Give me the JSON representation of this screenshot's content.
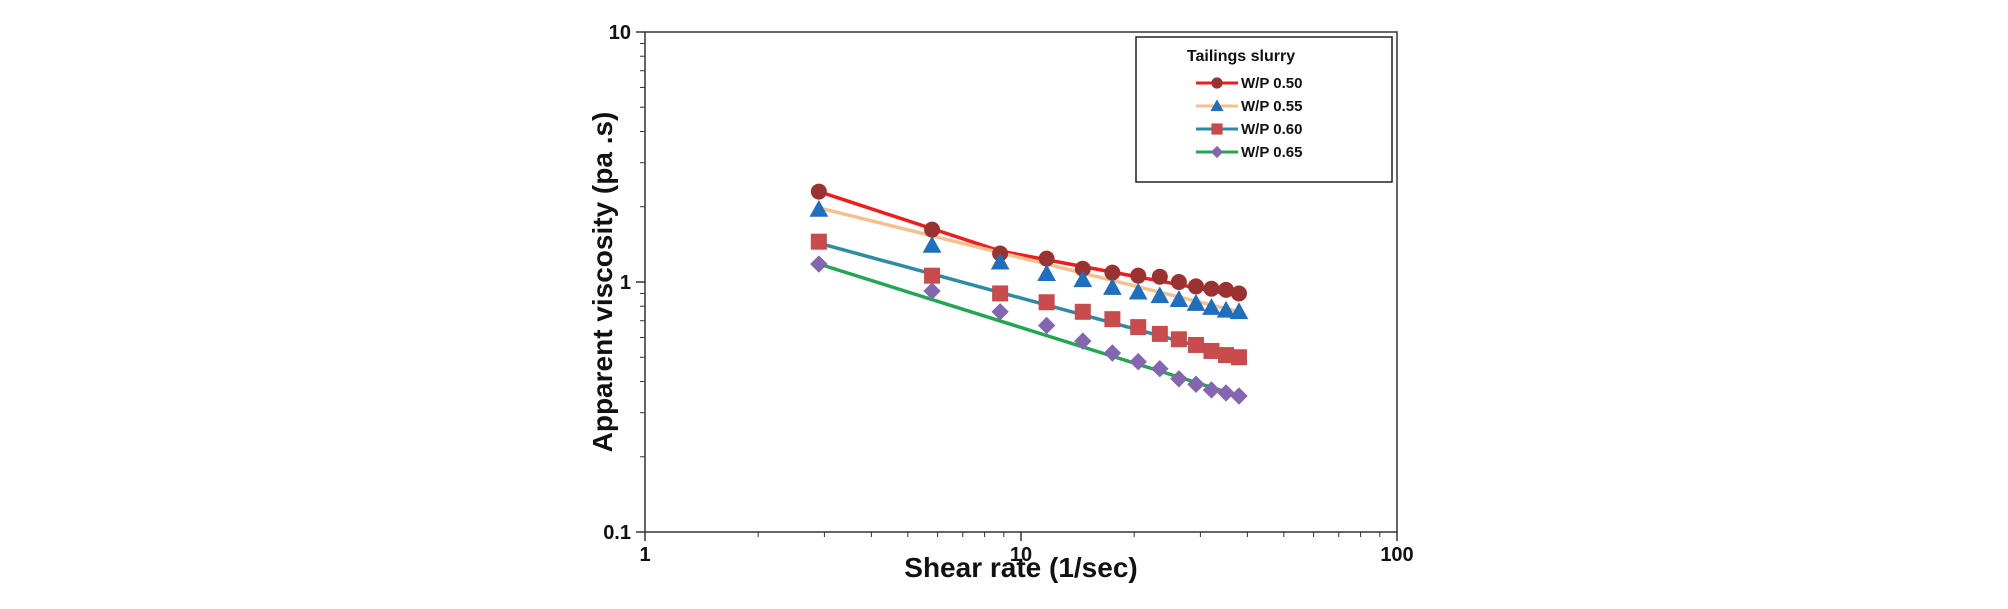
{
  "chart_data": {
    "type": "scatter",
    "title": "",
    "xlabel": "Shear rate (1/sec)",
    "ylabel": "Apparent    viscosity (pa .s)",
    "x_scale": "log",
    "y_scale": "log",
    "xlim": [
      1,
      100
    ],
    "ylim": [
      0.1,
      10
    ],
    "x_ticks": [
      {
        "value": 1,
        "label": "1"
      },
      {
        "value": 10,
        "label": "10"
      },
      {
        "value": 100,
        "label": "100"
      }
    ],
    "y_ticks": [
      {
        "value": 0.1,
        "label": "0.1"
      },
      {
        "value": 1,
        "label": "1"
      },
      {
        "value": 10,
        "label": "10"
      }
    ],
    "grid": false,
    "legend": {
      "title": "Tailings slurry",
      "position": "top-right"
    },
    "series": [
      {
        "name": "W/P 0.50",
        "color": "#9a3232",
        "line_color": "#ee1c1c",
        "marker": "circle",
        "x": [
          2.9,
          5.8,
          8.8,
          11.7,
          14.6,
          17.5,
          20.5,
          23.4,
          26.3,
          29.2,
          32.1,
          35.1,
          38.0
        ],
        "y": [
          2.3,
          1.62,
          1.3,
          1.24,
          1.13,
          1.09,
          1.06,
          1.05,
          1.0,
          0.96,
          0.94,
          0.93,
          0.9
        ],
        "fit": [
          [
            2.9,
            2.3
          ],
          [
            8.8,
            1.33
          ],
          [
            38.0,
            0.88
          ]
        ]
      },
      {
        "name": "W/P 0.55",
        "color": "#1f6fbf",
        "line_color": "#f4c18e",
        "marker": "triangle",
        "x": [
          2.9,
          5.8,
          8.8,
          11.7,
          14.6,
          17.5,
          20.5,
          23.4,
          26.3,
          29.2,
          32.1,
          35.1,
          38.0
        ],
        "y": [
          1.95,
          1.4,
          1.2,
          1.08,
          1.02,
          0.95,
          0.91,
          0.88,
          0.85,
          0.82,
          0.79,
          0.77,
          0.76
        ],
        "fit": [
          [
            2.9,
            1.98
          ],
          [
            38.0,
            0.76
          ]
        ]
      },
      {
        "name": "W/P 0.60",
        "color": "#c94b4b",
        "line_color": "#2f8aa4",
        "marker": "square",
        "x": [
          2.9,
          5.8,
          8.8,
          11.7,
          14.6,
          17.5,
          20.5,
          23.4,
          26.3,
          29.2,
          32.1,
          35.1,
          38.0
        ],
        "y": [
          1.45,
          1.06,
          0.9,
          0.83,
          0.76,
          0.71,
          0.66,
          0.62,
          0.59,
          0.56,
          0.53,
          0.51,
          0.5
        ],
        "fit": [
          [
            2.9,
            1.43
          ],
          [
            38.0,
            0.5
          ]
        ]
      },
      {
        "name": "W/P 0.65",
        "color": "#8466b0",
        "line_color": "#22a650",
        "marker": "diamond",
        "x": [
          2.9,
          5.8,
          8.8,
          11.7,
          14.6,
          17.5,
          20.5,
          23.4,
          26.3,
          29.2,
          32.1,
          35.1,
          38.0
        ],
        "y": [
          1.18,
          0.92,
          0.76,
          0.67,
          0.58,
          0.52,
          0.48,
          0.45,
          0.41,
          0.39,
          0.37,
          0.36,
          0.35
        ],
        "fit": [
          [
            2.9,
            1.18
          ],
          [
            38.0,
            0.35
          ]
        ]
      }
    ]
  }
}
